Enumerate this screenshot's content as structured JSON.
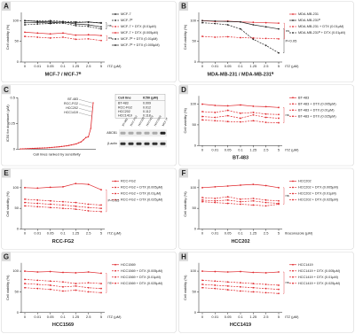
{
  "chart_data": [
    {
      "type": "line",
      "panel": "A",
      "title": "MCF-7 / MCF-7ᴿ",
      "x_label": "ITZ (µM)",
      "y_label": "Cell viability (%)",
      "categories": [
        "0",
        "0.01",
        "0.05",
        "0.1",
        "1.25",
        "2.5",
        "5"
      ],
      "ylim": [
        0,
        120
      ],
      "yticks": [
        0,
        50,
        100
      ],
      "series": [
        {
          "name": "MCF-7",
          "color": "#222222",
          "dashed": false,
          "values": [
            100,
            98,
            97,
            96,
            95,
            97,
            94
          ]
        },
        {
          "name": "MCF-7ᴿ",
          "color": "#222222",
          "dashed": true,
          "values": [
            100,
            99,
            100,
            98,
            97,
            96,
            95
          ]
        },
        {
          "name": "MCF-7 + DTX (0.01µM)",
          "color": "#e0282d",
          "dashed": true,
          "values": [
            62,
            60,
            58,
            60,
            55,
            56,
            52
          ]
        },
        {
          "name": "MCF-7 + DTX (0.005µM)",
          "color": "#e0282d",
          "dashed": false,
          "values": [
            72,
            70,
            68,
            70,
            65,
            66,
            64
          ]
        },
        {
          "name": "MCF-7ᴿ + DTX (0.01µM)",
          "color": "#222222",
          "dashed": true,
          "values": [
            90,
            92,
            93,
            94,
            88,
            86,
            80
          ]
        },
        {
          "name": "MCF-7ᴿ + DTX (0.005µM)",
          "color": "#222222",
          "dashed": false,
          "values": [
            95,
            96,
            94,
            97,
            92,
            90,
            85
          ]
        }
      ],
      "annotations": [
        {
          "text": "ns",
          "color": "#222222"
        },
        {
          "text": "ns",
          "color": "#e0282d"
        }
      ]
    },
    {
      "type": "line",
      "panel": "B",
      "title": "MDA-MB-231 / MDA-MB-231ᴿ",
      "x_label": "ITZ (µM)",
      "y_label": "Cell viability (%)",
      "categories": [
        "0",
        "0.01",
        "0.05",
        "0.1",
        "1.25",
        "2.5",
        "5"
      ],
      "ylim": [
        0,
        120
      ],
      "yticks": [
        0,
        50,
        100
      ],
      "series": [
        {
          "name": "MDA-MB-231",
          "color": "#e0282d",
          "dashed": false,
          "values": [
            100,
            98,
            99,
            97,
            96,
            95,
            94
          ]
        },
        {
          "name": "MDA-MB-231ᴿ",
          "color": "#222222",
          "dashed": false,
          "values": [
            100,
            99,
            98,
            97,
            90,
            85,
            80
          ]
        },
        {
          "name": "MDA-MB-231 + DTX (0.01µM)",
          "color": "#e0282d",
          "dashed": true,
          "values": [
            62,
            60,
            61,
            59,
            58,
            57,
            56
          ]
        },
        {
          "name": "MDA-MB-231ᴿ + DTX (0.01µM)",
          "color": "#222222",
          "dashed": true,
          "values": [
            95,
            93,
            90,
            80,
            55,
            40,
            22
          ]
        }
      ],
      "annotations": [
        {
          "text": "P<0.05",
          "color": "#222222"
        },
        {
          "text": "ns",
          "color": "#e0282d"
        }
      ]
    },
    {
      "type": "waterfall",
      "panel": "C",
      "y_label": "IC50 for docetaxel (µM)",
      "x_label": "Cell lines ranked by sensitivity",
      "ylim": [
        0,
        0.5
      ],
      "yticks": [
        0,
        0.25,
        0.5
      ],
      "values": [
        0.001,
        0.002,
        0.003,
        0.004,
        0.005,
        0.006,
        0.007,
        0.008,
        0.009,
        0.01,
        0.011,
        0.012,
        0.014,
        0.016,
        0.018,
        0.02,
        0.022,
        0.025,
        0.028,
        0.031,
        0.035,
        0.04,
        0.045,
        0.05,
        0.06,
        0.07,
        0.09,
        0.112,
        0.118,
        0.2,
        0.45
      ],
      "highlights": [
        "BT-483",
        "RCC-FG2",
        "HCC202",
        "HCC1419"
      ],
      "table": {
        "header": [
          "Cell line",
          "IC50 (µM)"
        ],
        "rows": [
          [
            "BT-483",
            "0.009"
          ],
          [
            "RCC-FG2",
            "0.012"
          ],
          [
            "HCC202",
            "0.112"
          ],
          [
            "HCC1419",
            "0.118"
          ]
        ]
      },
      "blot": {
        "bands": [
          "ABCB1",
          "β-actin"
        ],
        "lanes": [
          "BT-483",
          "RCC-FG2",
          "HCC202",
          "HCC1419",
          "HCC1569",
          "MCF-7ᴿ"
        ]
      }
    },
    {
      "type": "line",
      "panel": "D",
      "title": "BT-483",
      "x_label": "ITZ (µM)",
      "y_label": "Cell viability (%)",
      "categories": [
        "0",
        "0.01",
        "0.05",
        "0.1",
        "1.25",
        "2.5",
        "5"
      ],
      "ylim": [
        0,
        120
      ],
      "yticks": [
        0,
        50,
        100
      ],
      "series": [
        {
          "name": "BT-483",
          "color": "#e0282d",
          "dashed": false,
          "values": [
            100,
            97,
            96,
            98,
            95,
            94,
            92
          ]
        },
        {
          "name": "BT-483 + DTX (0.005µM)",
          "color": "#e0282d",
          "dashed": true,
          "values": [
            82,
            80,
            85,
            78,
            80,
            76,
            75
          ]
        },
        {
          "name": "BT-483 + DTX (0.01µM)",
          "color": "#e0282d",
          "dashed": true,
          "values": [
            70,
            68,
            72,
            66,
            74,
            68,
            66
          ]
        },
        {
          "name": "BT-483 + DTX (0.025µM)",
          "color": "#e0282d",
          "dashed": true,
          "values": [
            62,
            60,
            58,
            57,
            60,
            56,
            55
          ]
        }
      ],
      "annotations": [
        {
          "text": "ns",
          "color": "#e0282d"
        }
      ]
    },
    {
      "type": "line",
      "panel": "E",
      "title": "RCC-FG2",
      "x_label": "ITZ (µM)",
      "y_label": "Cell viability (%)",
      "categories": [
        "0",
        "0.01",
        "0.05",
        "0.1",
        "1.25",
        "2.5",
        "5"
      ],
      "ylim": [
        0,
        120
      ],
      "yticks": [
        0,
        50,
        100
      ],
      "series": [
        {
          "name": "RCC-FG2",
          "color": "#e0282d",
          "dashed": false,
          "values": [
            100,
            99,
            101,
            102,
            110,
            108,
            95
          ]
        },
        {
          "name": "RCC-FG2 + DTX (0.005µM)",
          "color": "#e0282d",
          "dashed": true,
          "values": [
            72,
            70,
            68,
            66,
            64,
            60,
            58
          ]
        },
        {
          "name": "RCC-FG2 + DTX (0.01µM)",
          "color": "#e0282d",
          "dashed": true,
          "values": [
            64,
            62,
            60,
            58,
            55,
            52,
            50
          ]
        },
        {
          "name": "RCC-FG2 + DTX (0.025µM)",
          "color": "#e0282d",
          "dashed": true,
          "values": [
            56,
            54,
            52,
            50,
            48,
            44,
            42
          ]
        }
      ],
      "annotations": [
        {
          "text": "P<0.05",
          "color": "#e0282d"
        }
      ]
    },
    {
      "type": "line",
      "panel": "F",
      "title": "HCC202",
      "x_label": "Itraconazole (µM)",
      "y_label": "Cell viability (%)",
      "categories": [
        "0",
        "0.01",
        "0.05",
        "0.1",
        "1.25",
        "2.5",
        "5"
      ],
      "ylim": [
        0,
        120
      ],
      "yticks": [
        0,
        50,
        100
      ],
      "series": [
        {
          "name": "HCC202",
          "color": "#e0282d",
          "dashed": false,
          "values": [
            100,
            102,
            104,
            106,
            108,
            105,
            100
          ]
        },
        {
          "name": "HCC202 + DTX (0.005µM)",
          "color": "#e0282d",
          "dashed": true,
          "values": [
            76,
            74,
            78,
            72,
            74,
            70,
            68
          ]
        },
        {
          "name": "HCC202 + DTX (0.01µM)",
          "color": "#e0282d",
          "dashed": true,
          "values": [
            70,
            68,
            70,
            66,
            68,
            64,
            62
          ]
        },
        {
          "name": "HCC202 + DTX (0.025µM)",
          "color": "#e0282d",
          "dashed": true,
          "values": [
            66,
            64,
            62,
            60,
            58,
            56,
            60
          ]
        }
      ],
      "annotations": [
        {
          "text": "ns",
          "color": "#e0282d"
        }
      ]
    },
    {
      "type": "line",
      "panel": "G",
      "title": "HCC1569",
      "x_label": "ITZ (µM)",
      "y_label": "Cell viability (%)",
      "categories": [
        "0",
        "0.01",
        "0.05",
        "0.1",
        "1.25",
        "2.5",
        "5"
      ],
      "ylim": [
        0,
        120
      ],
      "yticks": [
        0,
        50,
        100
      ],
      "series": [
        {
          "name": "HCC1569",
          "color": "#e0282d",
          "dashed": false,
          "values": [
            100,
            98,
            99,
            97,
            96,
            98,
            95
          ]
        },
        {
          "name": "HCC1569 + DTX (0.005µM)",
          "color": "#e0282d",
          "dashed": true,
          "values": [
            80,
            78,
            76,
            74,
            70,
            72,
            70
          ]
        },
        {
          "name": "HCC1569 + DTX (0.01µM)",
          "color": "#e0282d",
          "dashed": true,
          "values": [
            70,
            68,
            66,
            62,
            64,
            60,
            58
          ]
        },
        {
          "name": "HCC1569 + DTX (0.025µM)",
          "color": "#e0282d",
          "dashed": true,
          "values": [
            60,
            58,
            56,
            52,
            54,
            50,
            48
          ]
        }
      ],
      "annotations": [
        {
          "text": "ns",
          "color": "#e0282d"
        }
      ]
    },
    {
      "type": "line",
      "panel": "H",
      "title": "HCC1419",
      "x_label": "ITZ (µM)",
      "y_label": "Cell viability (%)",
      "categories": [
        "0",
        "0.01",
        "0.05",
        "0.1",
        "1.25",
        "2.5",
        "5"
      ],
      "ylim": [
        0,
        120
      ],
      "yticks": [
        0,
        50,
        100
      ],
      "series": [
        {
          "name": "HCC1419",
          "color": "#e0282d",
          "dashed": false,
          "values": [
            100,
            99,
            98,
            99,
            97,
            96,
            98
          ]
        },
        {
          "name": "HCC1419 + DTX (0.005µM)",
          "color": "#e0282d",
          "dashed": true,
          "values": [
            78,
            76,
            74,
            72,
            70,
            68,
            66
          ]
        },
        {
          "name": "HCC1419 + DTX (0.01µM)",
          "color": "#e0282d",
          "dashed": true,
          "values": [
            68,
            66,
            64,
            62,
            60,
            58,
            56
          ]
        },
        {
          "name": "HCC1419 + DTX (0.025µM)",
          "color": "#e0282d",
          "dashed": true,
          "values": [
            60,
            58,
            55,
            52,
            50,
            48,
            46
          ]
        }
      ],
      "annotations": [
        {
          "text": "ns",
          "color": "#e0282d"
        }
      ]
    }
  ]
}
